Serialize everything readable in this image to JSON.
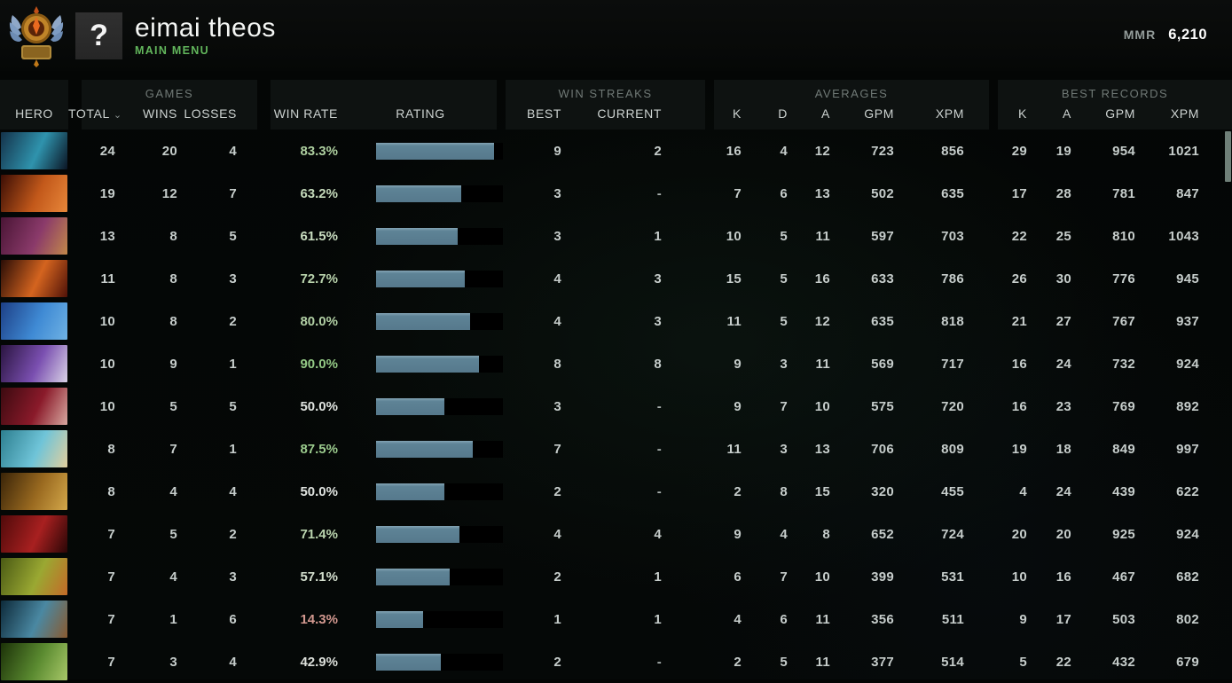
{
  "header": {
    "player_name": "eimai theos",
    "menu_label": "MAIN MENU",
    "avatar_glyph": "?",
    "mmr_label": "MMR",
    "mmr_value": "6,210"
  },
  "groups": {
    "games": "GAMES",
    "win_streaks": "WIN STREAKS",
    "averages": "AVERAGES",
    "best_records": "BEST RECORDS"
  },
  "columns": {
    "hero": "HERO",
    "total": "TOTAL",
    "sort_indicator": "⌄",
    "wins": "WINS",
    "losses": "LOSSES",
    "win_rate": "WIN RATE",
    "rating": "RATING",
    "best": "BEST",
    "current": "CURRENT",
    "k": "K",
    "d": "D",
    "a": "A",
    "gpm": "GPM",
    "xpm": "XPM",
    "rec_k": "K",
    "rec_a": "A",
    "rec_gpm": "GPM",
    "rec_xpm": "XPM"
  },
  "colors": {
    "rating_fill": "#5e8396",
    "rating_track": "#000000",
    "menu_green": "#62b65c",
    "scrollbar": "#6f7f78",
    "header_panel": "#0e1211"
  },
  "rows": [
    {
      "total": "24",
      "wins": "20",
      "losses": "4",
      "win_rate": "83.3%",
      "win_rate_color": "#aecfa0",
      "rating_fill": 0.93,
      "best": "9",
      "current": "2",
      "k": "16",
      "d": "4",
      "a": "12",
      "gpm": "723",
      "xpm": "856",
      "rk": "29",
      "ra": "19",
      "rgpm": "954",
      "rxpm": "1021",
      "portrait": [
        "#14324a",
        "#2f93ad",
        "#0b1524"
      ]
    },
    {
      "total": "19",
      "wins": "12",
      "losses": "7",
      "win_rate": "63.2%",
      "win_rate_color": "#c4d9ba",
      "rating_fill": 0.67,
      "best": "3",
      "current": "-",
      "k": "7",
      "d": "6",
      "a": "13",
      "gpm": "502",
      "xpm": "635",
      "rk": "17",
      "ra": "28",
      "rgpm": "781",
      "rxpm": "847",
      "portrait": [
        "#3c0e05",
        "#c2581a",
        "#e8873a"
      ]
    },
    {
      "total": "13",
      "wins": "8",
      "losses": "5",
      "win_rate": "61.5%",
      "win_rate_color": "#c8dcbf",
      "rating_fill": 0.64,
      "best": "3",
      "current": "1",
      "k": "10",
      "d": "5",
      "a": "11",
      "gpm": "597",
      "xpm": "703",
      "rk": "22",
      "ra": "25",
      "rgpm": "810",
      "rxpm": "1043",
      "portrait": [
        "#4a1535",
        "#8a3a6a",
        "#c2884a"
      ]
    },
    {
      "total": "11",
      "wins": "8",
      "losses": "3",
      "win_rate": "72.7%",
      "win_rate_color": "#b9d3ac",
      "rating_fill": 0.7,
      "best": "4",
      "current": "3",
      "k": "15",
      "d": "5",
      "a": "16",
      "gpm": "633",
      "xpm": "786",
      "rk": "26",
      "ra": "30",
      "rgpm": "776",
      "rxpm": "945",
      "portrait": [
        "#2a0d06",
        "#d4641f",
        "#501208"
      ]
    },
    {
      "total": "10",
      "wins": "8",
      "losses": "2",
      "win_rate": "80.0%",
      "win_rate_color": "#b2d0a5",
      "rating_fill": 0.74,
      "best": "4",
      "current": "3",
      "k": "11",
      "d": "5",
      "a": "12",
      "gpm": "635",
      "xpm": "818",
      "rk": "21",
      "ra": "27",
      "rgpm": "767",
      "rxpm": "937",
      "portrait": [
        "#1d3f86",
        "#3f8ad4",
        "#6fb2e4"
      ]
    },
    {
      "total": "10",
      "wins": "9",
      "losses": "1",
      "win_rate": "90.0%",
      "win_rate_color": "#93c985",
      "rating_fill": 0.81,
      "best": "8",
      "current": "8",
      "k": "9",
      "d": "3",
      "a": "11",
      "gpm": "569",
      "xpm": "717",
      "rk": "16",
      "ra": "24",
      "rgpm": "732",
      "rxpm": "924",
      "portrait": [
        "#2a1440",
        "#7a4fb0",
        "#d9d2e6"
      ]
    },
    {
      "total": "10",
      "wins": "5",
      "losses": "5",
      "win_rate": "50.0%",
      "win_rate_color": "#dfe3df",
      "rating_fill": 0.54,
      "best": "3",
      "current": "-",
      "k": "9",
      "d": "7",
      "a": "10",
      "gpm": "575",
      "xpm": "720",
      "rk": "16",
      "ra": "23",
      "rgpm": "769",
      "rxpm": "892",
      "portrait": [
        "#3c0a10",
        "#8a1a2a",
        "#d8a8a0"
      ]
    },
    {
      "total": "8",
      "wins": "7",
      "losses": "1",
      "win_rate": "87.5%",
      "win_rate_color": "#9bcb8d",
      "rating_fill": 0.76,
      "best": "7",
      "current": "-",
      "k": "11",
      "d": "3",
      "a": "13",
      "gpm": "706",
      "xpm": "809",
      "rk": "19",
      "ra": "18",
      "rgpm": "849",
      "rxpm": "997",
      "portrait": [
        "#2d7f90",
        "#6fc4d8",
        "#e2cf9e"
      ]
    },
    {
      "total": "8",
      "wins": "4",
      "losses": "4",
      "win_rate": "50.0%",
      "win_rate_color": "#dfe3df",
      "rating_fill": 0.54,
      "best": "2",
      "current": "-",
      "k": "2",
      "d": "8",
      "a": "15",
      "gpm": "320",
      "xpm": "455",
      "rk": "4",
      "ra": "24",
      "rgpm": "439",
      "rxpm": "622",
      "portrait": [
        "#3a2408",
        "#9a6a20",
        "#d4a84a"
      ]
    },
    {
      "total": "7",
      "wins": "5",
      "losses": "2",
      "win_rate": "71.4%",
      "win_rate_color": "#bad4ae",
      "rating_fill": 0.66,
      "best": "4",
      "current": "4",
      "k": "9",
      "d": "4",
      "a": "8",
      "gpm": "652",
      "xpm": "724",
      "rk": "20",
      "ra": "20",
      "rgpm": "925",
      "rxpm": "924",
      "portrait": [
        "#500a0a",
        "#a82020",
        "#2a0606"
      ]
    },
    {
      "total": "7",
      "wins": "4",
      "losses": "3",
      "win_rate": "57.1%",
      "win_rate_color": "#d4dfce",
      "rating_fill": 0.58,
      "best": "2",
      "current": "1",
      "k": "6",
      "d": "7",
      "a": "10",
      "gpm": "399",
      "xpm": "531",
      "rk": "10",
      "ra": "16",
      "rgpm": "467",
      "rxpm": "682",
      "portrait": [
        "#4a5a14",
        "#9aa832",
        "#c46a28"
      ]
    },
    {
      "total": "7",
      "wins": "1",
      "losses": "6",
      "win_rate": "14.3%",
      "win_rate_color": "#d2988f",
      "rating_fill": 0.37,
      "best": "1",
      "current": "1",
      "k": "4",
      "d": "6",
      "a": "11",
      "gpm": "356",
      "xpm": "511",
      "rk": "9",
      "ra": "17",
      "rgpm": "503",
      "rxpm": "802",
      "portrait": [
        "#0d2a3a",
        "#4a88a2",
        "#8a5a30"
      ]
    },
    {
      "total": "7",
      "wins": "3",
      "losses": "4",
      "win_rate": "42.9%",
      "win_rate_color": "#dcdfda",
      "rating_fill": 0.51,
      "best": "2",
      "current": "-",
      "k": "2",
      "d": "5",
      "a": "11",
      "gpm": "377",
      "xpm": "514",
      "rk": "5",
      "ra": "22",
      "rgpm": "432",
      "rxpm": "679",
      "portrait": [
        "#1c3208",
        "#5a8a30",
        "#a8c868"
      ]
    }
  ]
}
